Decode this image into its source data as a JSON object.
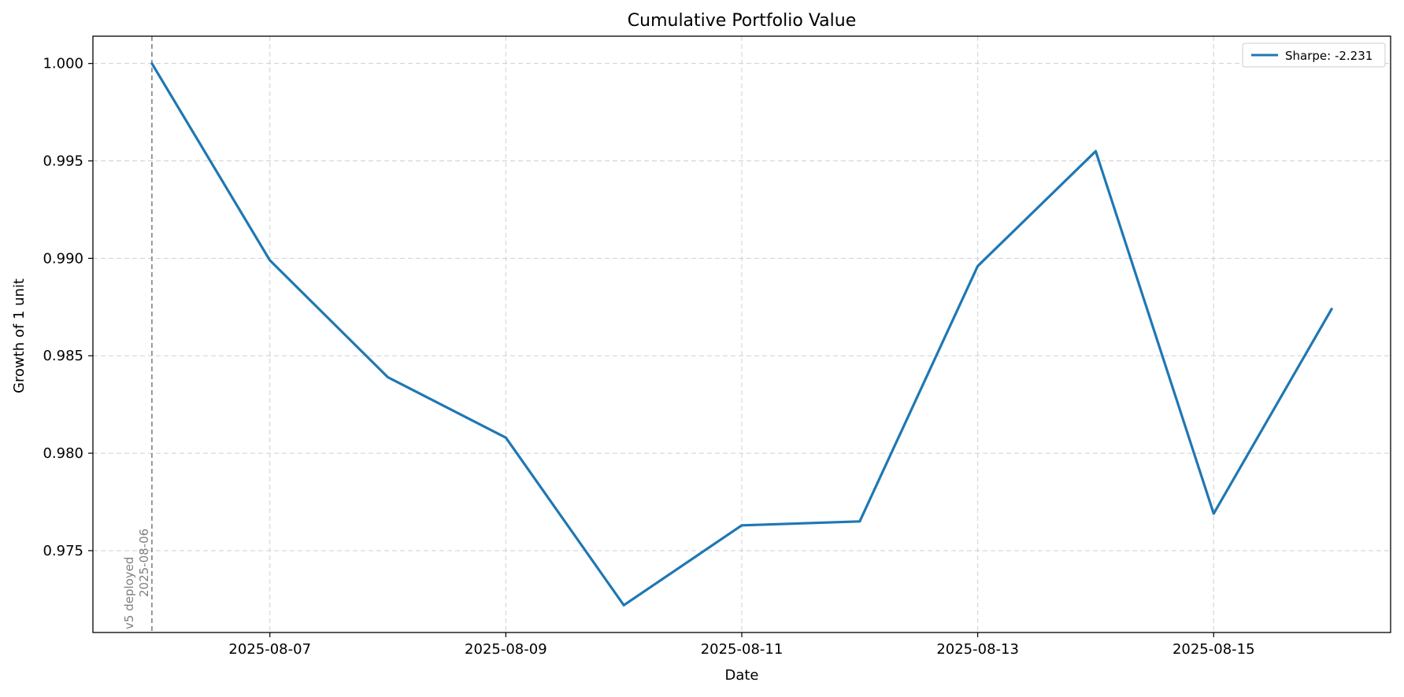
{
  "chart_data": {
    "type": "line",
    "title": "Cumulative Portfolio Value",
    "xlabel": "Date",
    "ylabel": "Growth of 1 unit",
    "x_tick_labels": [
      "2025-08-07",
      "2025-08-09",
      "2025-08-11",
      "2025-08-13",
      "2025-08-15"
    ],
    "y_tick_labels": [
      "0.975",
      "0.980",
      "0.985",
      "0.990",
      "0.995",
      "1.000"
    ],
    "y_ticks": [
      0.975,
      0.98,
      0.985,
      0.99,
      0.995,
      1.0
    ],
    "xlim": [
      "2025-08-05",
      "2025-08-16"
    ],
    "ylim": [
      0.9708,
      1.0014
    ],
    "grid": true,
    "legend_position": "top-right",
    "series": [
      {
        "name": "Sharpe: -2.231",
        "color": "#1f77b4",
        "x": [
          "2025-08-06",
          "2025-08-07",
          "2025-08-08",
          "2025-08-09",
          "2025-08-10",
          "2025-08-11",
          "2025-08-12",
          "2025-08-13",
          "2025-08-14",
          "2025-08-15",
          "2025-08-16"
        ],
        "y": [
          1.0,
          0.9899,
          0.9839,
          0.9808,
          0.9722,
          0.9763,
          0.9765,
          0.9896,
          0.9955,
          0.9769,
          0.9874
        ]
      }
    ],
    "annotation": {
      "type": "vertical-line",
      "x": "2025-08-06",
      "text_line1": "v5 deployed",
      "text_line2": "2025-08-06",
      "color": "#808080"
    }
  }
}
